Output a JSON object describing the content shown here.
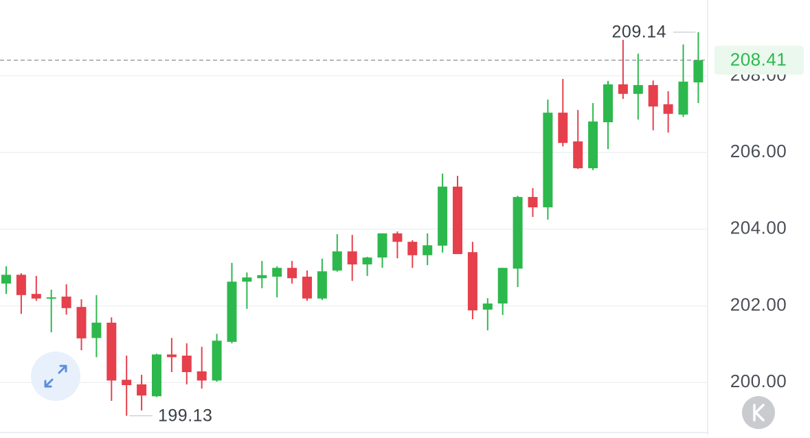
{
  "chart_data": {
    "type": "candlestick",
    "open": [
      202.58,
      202.81,
      202.31,
      202.19,
      202.24,
      201.97,
      201.16,
      201.56,
      200.07,
      199.95,
      199.64,
      200.73,
      200.7,
      200.29,
      200.05,
      201.06,
      202.63,
      202.72,
      202.76,
      202.99,
      202.76,
      202.19,
      202.92,
      203.42,
      203.08,
      203.26,
      203.89,
      203.67,
      203.32,
      203.57,
      205.11,
      203.4,
      201.9,
      202.06,
      202.97,
      204.84,
      204.57,
      207.04,
      206.29,
      205.59,
      206.79,
      207.78,
      207.53,
      207.76,
      207.26,
      206.99,
      207.83
    ],
    "high": [
      203.03,
      202.85,
      202.78,
      202.42,
      202.56,
      202.17,
      202.28,
      201.7,
      200.7,
      200.2,
      200.75,
      201.16,
      201.02,
      200.93,
      201.27,
      203.12,
      202.87,
      203.17,
      203.03,
      203.17,
      202.92,
      203.23,
      203.87,
      203.85,
      203.28,
      203.89,
      203.94,
      203.71,
      203.89,
      205.45,
      205.39,
      203.67,
      202.2,
      202.99,
      204.87,
      205.07,
      207.38,
      207.92,
      207.11,
      207.29,
      207.87,
      208.94,
      208.58,
      207.88,
      207.6,
      208.82,
      209.14
    ],
    "low": [
      202.31,
      201.79,
      202.13,
      201.31,
      201.77,
      200.84,
      200.66,
      199.52,
      199.13,
      199.27,
      199.62,
      200.27,
      199.95,
      199.84,
      200.02,
      201.02,
      201.92,
      202.46,
      202.22,
      202.58,
      202.13,
      202.15,
      202.89,
      202.65,
      202.78,
      202.99,
      203.24,
      202.99,
      203.06,
      203.39,
      203.35,
      201.65,
      201.36,
      201.76,
      202.49,
      204.32,
      204.25,
      206.16,
      205.57,
      205.54,
      206.09,
      207.4,
      206.86,
      206.58,
      206.52,
      206.93,
      207.29
    ],
    "close": [
      202.81,
      202.28,
      202.19,
      202.22,
      201.94,
      201.15,
      201.56,
      200.05,
      199.93,
      199.66,
      200.73,
      200.66,
      200.27,
      200.05,
      201.09,
      202.63,
      202.74,
      202.8,
      202.99,
      202.72,
      202.19,
      202.9,
      203.42,
      203.08,
      203.26,
      203.89,
      203.67,
      203.32,
      203.58,
      205.11,
      203.35,
      201.88,
      202.06,
      202.99,
      204.84,
      204.57,
      207.04,
      206.25,
      205.59,
      206.81,
      207.78,
      207.53,
      207.76,
      207.2,
      207.01,
      207.85,
      208.41
    ],
    "up_color": "#2db84d",
    "down_color": "#e5404c",
    "ylim": [
      198.64,
      209.98
    ],
    "yticks": [
      {
        "value": 200,
        "label": "200.00"
      },
      {
        "value": 202,
        "label": "202.00"
      },
      {
        "value": 204,
        "label": "204.00"
      },
      {
        "value": 206,
        "label": "206.00"
      },
      {
        "value": 208,
        "label": "208.00"
      }
    ],
    "grid": true,
    "last_price": 208.41,
    "max_annotation": 209.14,
    "min_annotation": 199.13
  }
}
